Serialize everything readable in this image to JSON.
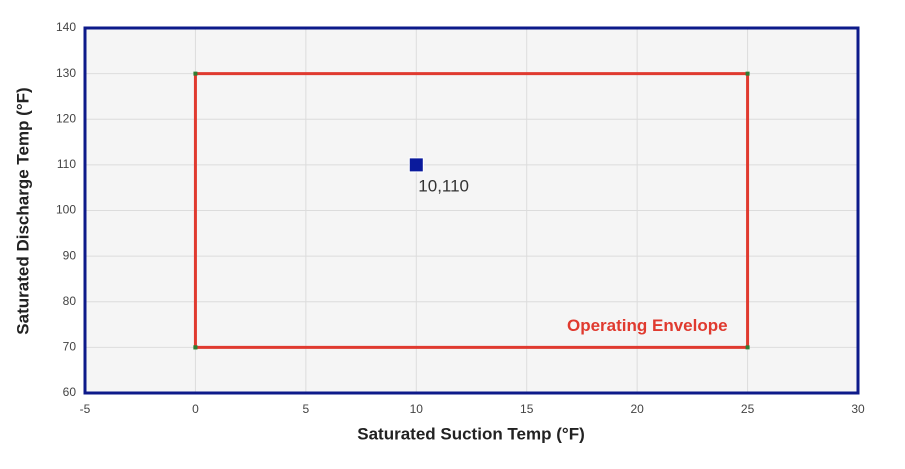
{
  "chart_data": {
    "type": "scatter",
    "x_label": "Saturated Suction Temp (°F)",
    "y_label": "Saturated Discharge Temp (°F)",
    "xlim": [
      -5,
      30
    ],
    "xticks": [
      -5,
      0,
      5,
      10,
      15,
      20,
      25,
      30
    ],
    "ylim": [
      60,
      140
    ],
    "yticks": [
      60,
      70,
      80,
      90,
      100,
      110,
      120,
      130,
      140
    ],
    "grid": true,
    "series": [
      {
        "name": "Operating Envelope",
        "mode": "line",
        "color": "#e03a2f",
        "vertex_color": "#2e7d32",
        "x": [
          0,
          25,
          25,
          0,
          0
        ],
        "values": [
          70,
          70,
          130,
          130,
          70
        ]
      },
      {
        "mode": "marker",
        "color": "#0a1a9c",
        "x": [
          10
        ],
        "values": [
          110
        ],
        "value_labels": [
          "10,110"
        ]
      }
    ]
  }
}
